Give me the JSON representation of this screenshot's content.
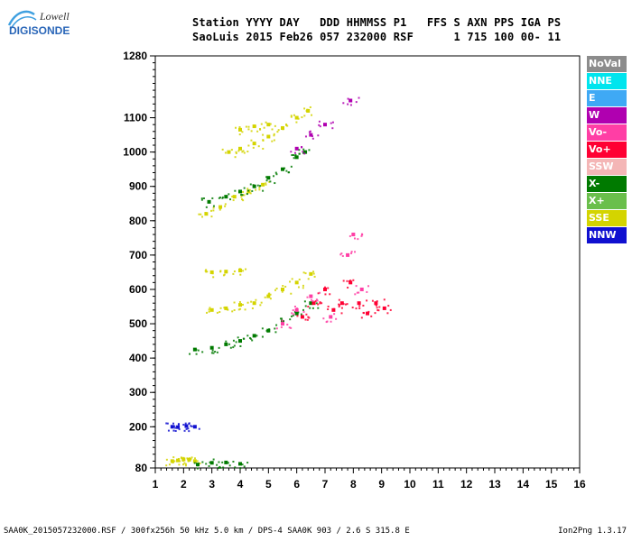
{
  "logo": {
    "top_text": "Lowell",
    "bottom_text": "DIGISONDE"
  },
  "header": {
    "line1": "Station YYYY DAY   DDD HHMMSS P1   FFS S AXN PPS IGA PS",
    "line2": "SaoLuis 2015 Feb26 057 232000 RSF      1 715 100 00- 11"
  },
  "legend": [
    {
      "label": "NoVal",
      "color": "#8c8c8c"
    },
    {
      "label": "NNE",
      "color": "#00e5ee"
    },
    {
      "label": "E",
      "color": "#3fa9f5"
    },
    {
      "label": "W",
      "color": "#b000b0"
    },
    {
      "label": "Vo-",
      "color": "#ff3ea5"
    },
    {
      "label": "Vo+",
      "color": "#ff0033"
    },
    {
      "label": "SSW",
      "color": "#f4b6b6"
    },
    {
      "label": "X-",
      "color": "#007a00"
    },
    {
      "label": "X+",
      "color": "#6abf4b"
    },
    {
      "label": "SSE",
      "color": "#d4d400"
    },
    {
      "label": "NNW",
      "color": "#1010d0"
    }
  ],
  "footer": {
    "left": "SAA0K_2015057232000.RSF / 300fx256h 50 kHz 5.0 km / DPS-4 SAA0K 903 / 2.6 S 315.8 E",
    "right": "Ion2Png 1.3.17"
  },
  "chart_data": {
    "type": "scatter",
    "x_ticks": [
      "1",
      "2",
      "3",
      "4",
      "5",
      "6",
      "7",
      "8",
      "9",
      "10",
      "11",
      "12",
      "13",
      "14",
      "15",
      "16"
    ],
    "y_ticks": [
      "80",
      "200",
      "300",
      "400",
      "500",
      "600",
      "700",
      "800",
      "900",
      "1000",
      "1100",
      "1280"
    ],
    "xlim": [
      1,
      16
    ],
    "ylim": [
      80,
      1280
    ],
    "grid": false,
    "legend_placement": "right",
    "traces": [
      {
        "label": "SSE",
        "points": [
          [
            1.6,
            100
          ],
          [
            1.8,
            102
          ],
          [
            2.0,
            105
          ],
          [
            2.2,
            104
          ],
          [
            2.4,
            100
          ]
        ]
      },
      {
        "label": "X-",
        "points": [
          [
            2.5,
            90
          ],
          [
            3.0,
            95
          ],
          [
            3.5,
            96
          ],
          [
            4.0,
            92
          ]
        ]
      },
      {
        "label": "NNW",
        "points": [
          [
            1.6,
            200
          ],
          [
            1.8,
            199
          ],
          [
            2.1,
            202
          ],
          [
            2.4,
            200
          ]
        ]
      },
      {
        "label": "X-",
        "points": [
          [
            2.4,
            425
          ],
          [
            3.0,
            430
          ],
          [
            3.5,
            440
          ],
          [
            4.0,
            450
          ],
          [
            4.5,
            465
          ],
          [
            5.0,
            480
          ],
          [
            5.5,
            505
          ],
          [
            6.0,
            530
          ],
          [
            6.5,
            560
          ]
        ]
      },
      {
        "label": "SSE",
        "points": [
          [
            3.0,
            540
          ],
          [
            3.5,
            545
          ],
          [
            4.0,
            555
          ],
          [
            4.5,
            560
          ],
          [
            5.0,
            580
          ],
          [
            5.5,
            600
          ],
          [
            6.0,
            620
          ],
          [
            6.5,
            645
          ]
        ]
      },
      {
        "label": "SSE",
        "points": [
          [
            3.0,
            650
          ],
          [
            3.5,
            652
          ],
          [
            4.0,
            655
          ]
        ]
      },
      {
        "label": "SSE",
        "points": [
          [
            2.8,
            820
          ],
          [
            3.3,
            840
          ],
          [
            3.8,
            870
          ],
          [
            4.3,
            885
          ],
          [
            4.8,
            905
          ]
        ]
      },
      {
        "label": "X-",
        "points": [
          [
            2.9,
            855
          ],
          [
            3.5,
            870
          ],
          [
            4.0,
            885
          ],
          [
            4.5,
            900
          ],
          [
            5.0,
            925
          ],
          [
            5.5,
            950
          ],
          [
            6.0,
            985
          ],
          [
            6.3,
            1000
          ]
        ]
      },
      {
        "label": "SSE",
        "points": [
          [
            3.6,
            1000
          ],
          [
            4.0,
            1010
          ],
          [
            4.5,
            1025
          ],
          [
            5.0,
            1045
          ],
          [
            5.5,
            1070
          ],
          [
            6.0,
            1100
          ],
          [
            6.4,
            1120
          ]
        ]
      },
      {
        "label": "SSE",
        "points": [
          [
            4.0,
            1065
          ],
          [
            4.5,
            1075
          ],
          [
            5.0,
            1080
          ]
        ]
      },
      {
        "label": "Vo+",
        "points": [
          [
            6.2,
            520
          ],
          [
            6.6,
            560
          ],
          [
            7.0,
            600
          ],
          [
            7.3,
            540
          ],
          [
            7.6,
            560
          ],
          [
            7.9,
            620
          ],
          [
            8.2,
            560
          ],
          [
            8.5,
            530
          ],
          [
            8.8,
            560
          ],
          [
            9.1,
            545
          ]
        ]
      },
      {
        "label": "Vo-",
        "points": [
          [
            5.5,
            500
          ],
          [
            6.0,
            540
          ],
          [
            6.5,
            580
          ],
          [
            7.2,
            520
          ],
          [
            7.8,
            700
          ],
          [
            8.0,
            760
          ],
          [
            8.3,
            600
          ]
        ]
      },
      {
        "label": "W",
        "points": [
          [
            6.0,
            1010
          ],
          [
            6.5,
            1050
          ],
          [
            7.0,
            1080
          ],
          [
            7.9,
            1150
          ]
        ]
      }
    ]
  }
}
